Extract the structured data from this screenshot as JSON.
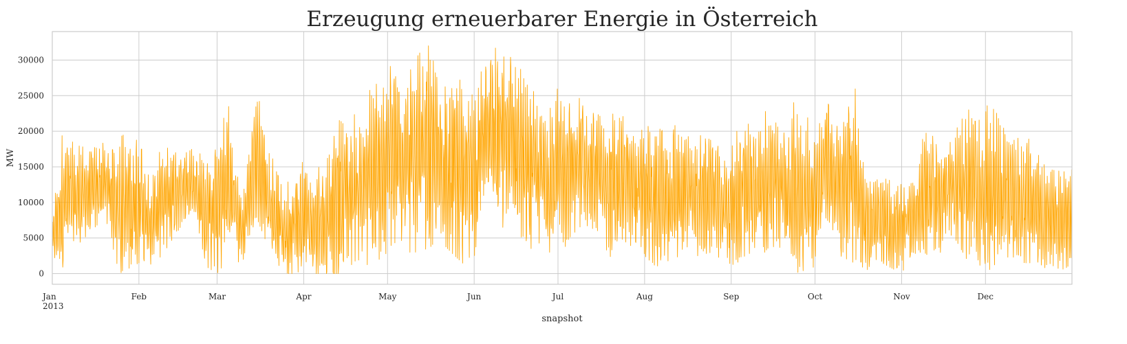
{
  "chart_data": {
    "type": "line",
    "title": "Erzeugung erneuerbarer Energie in Österreich",
    "xlabel": "snapshot",
    "ylabel": "MW",
    "x_ticks": [
      "Jan",
      "Feb",
      "Mar",
      "Apr",
      "May",
      "Jun",
      "Jul",
      "Aug",
      "Sep",
      "Oct",
      "Nov",
      "Dec"
    ],
    "x_year_label": "2013",
    "x_range": [
      "2013-01-01",
      "2013-12-31"
    ],
    "y_ticks": [
      0,
      5000,
      10000,
      15000,
      20000,
      25000,
      30000
    ],
    "ylim": [
      -1500,
      34000
    ],
    "grid": true,
    "series": [
      {
        "color": "#FFA500",
        "x": [
          "2013-01-01",
          "2013-01-05",
          "2013-01-10",
          "2013-01-15",
          "2013-01-20",
          "2013-01-25",
          "2013-02-01",
          "2013-02-05",
          "2013-02-10",
          "2013-02-15",
          "2013-02-20",
          "2013-02-25",
          "2013-03-01",
          "2013-03-05",
          "2013-03-10",
          "2013-03-15",
          "2013-03-20",
          "2013-03-25",
          "2013-04-01",
          "2013-04-05",
          "2013-04-10",
          "2013-04-15",
          "2013-04-20",
          "2013-04-25",
          "2013-05-01",
          "2013-05-05",
          "2013-05-10",
          "2013-05-15",
          "2013-05-20",
          "2013-05-25",
          "2013-06-01",
          "2013-06-05",
          "2013-06-10",
          "2013-06-15",
          "2013-06-20",
          "2013-06-25",
          "2013-07-01",
          "2013-07-05",
          "2013-07-10",
          "2013-07-15",
          "2013-07-20",
          "2013-07-25",
          "2013-08-01",
          "2013-08-05",
          "2013-08-10",
          "2013-08-15",
          "2013-08-20",
          "2013-08-25",
          "2013-09-01",
          "2013-09-05",
          "2013-09-10",
          "2013-09-15",
          "2013-09-20",
          "2013-09-25",
          "2013-10-01",
          "2013-10-05",
          "2013-10-10",
          "2013-10-15",
          "2013-10-20",
          "2013-10-25",
          "2013-11-01",
          "2013-11-05",
          "2013-11-10",
          "2013-11-15",
          "2013-11-20",
          "2013-11-25",
          "2013-12-01",
          "2013-12-05",
          "2013-12-10",
          "2013-12-15",
          "2013-12-20",
          "2013-12-25",
          "2013-12-31"
        ],
        "min": [
          2500,
          800,
          4000,
          6000,
          8000,
          0,
          1500,
          500,
          3000,
          6000,
          9000,
          1000,
          0,
          2000,
          1500,
          8000,
          3000,
          0,
          0,
          0,
          0,
          0,
          2000,
          1000,
          3000,
          5000,
          2500,
          3500,
          4500,
          2500,
          0,
          13000,
          6000,
          8000,
          3000,
          4500,
          1500,
          5000,
          7000,
          6000,
          2000,
          4500,
          2500,
          1000,
          1500,
          3000,
          2500,
          3000,
          1000,
          2000,
          1500,
          4000,
          2500,
          0,
          1000,
          8000,
          2500,
          1500,
          500,
          1500,
          0,
          3000,
          2000,
          3000,
          5000,
          1500,
          0,
          1500,
          2500,
          1500,
          1500,
          0,
          1000
        ],
        "max": [
          8000,
          21000,
          18000,
          17500,
          18500,
          19500,
          20500,
          13000,
          19000,
          17500,
          18000,
          16000,
          18500,
          25000,
          10000,
          26000,
          18000,
          12000,
          16500,
          14500,
          16500,
          24000,
          22000,
          26500,
          29000,
          30000,
          29500,
          32500,
          28500,
          28000,
          25000,
          32200,
          31500,
          31300,
          26500,
          24500,
          26000,
          25000,
          24500,
          23000,
          22500,
          22000,
          21000,
          20000,
          21000,
          20500,
          19000,
          21000,
          17500,
          22500,
          21000,
          24000,
          22000,
          25000,
          19500,
          25000,
          21000,
          27000,
          13000,
          13500,
          12500,
          13500,
          22000,
          19000,
          20500,
          23000,
          23500,
          24000,
          18500,
          19500,
          17500,
          14500,
          15500
        ]
      }
    ]
  }
}
